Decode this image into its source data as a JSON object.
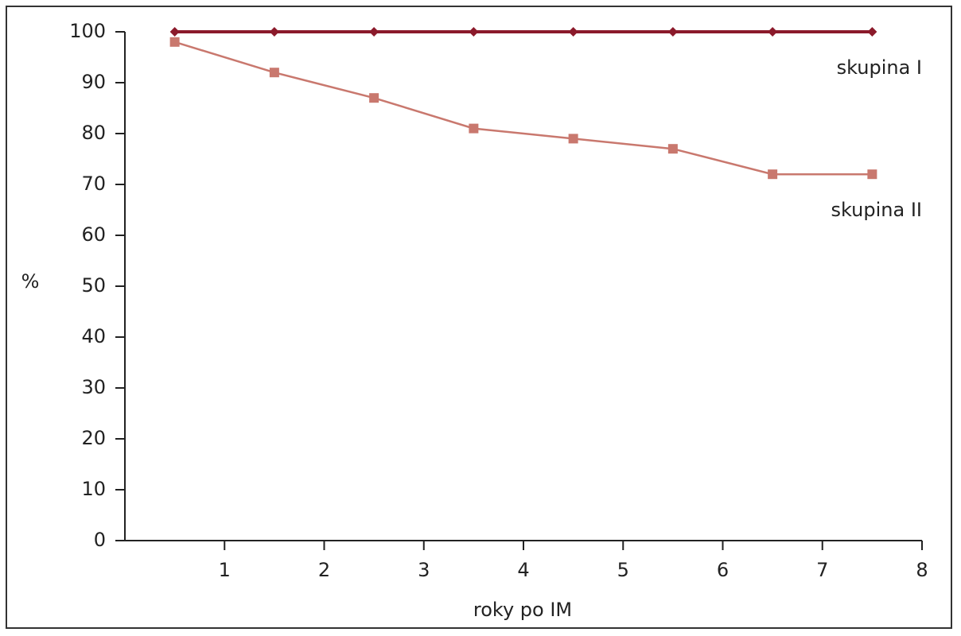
{
  "chart_data": {
    "type": "line",
    "x_label": "roky po IM",
    "y_label": "%",
    "x": [
      0.5,
      1.5,
      2.5,
      3.5,
      4.5,
      5.5,
      6.5,
      7.5
    ],
    "series": [
      {
        "name": "skupina I",
        "color": "#8b1a2b",
        "marker": "diamond",
        "values": [
          100,
          100,
          100,
          100,
          100,
          100,
          100,
          100
        ]
      },
      {
        "name": "skupina II",
        "color": "#c9786e",
        "marker": "square",
        "values": [
          98,
          92,
          87,
          81,
          79,
          77,
          72,
          72
        ]
      }
    ],
    "xlim": [
      0,
      8
    ],
    "xticks": [
      1,
      2,
      3,
      4,
      5,
      6,
      7,
      8
    ],
    "ylim": [
      0,
      100
    ],
    "yticks": [
      0,
      10,
      20,
      30,
      40,
      50,
      60,
      70,
      80,
      90,
      100
    ],
    "grid": false
  }
}
